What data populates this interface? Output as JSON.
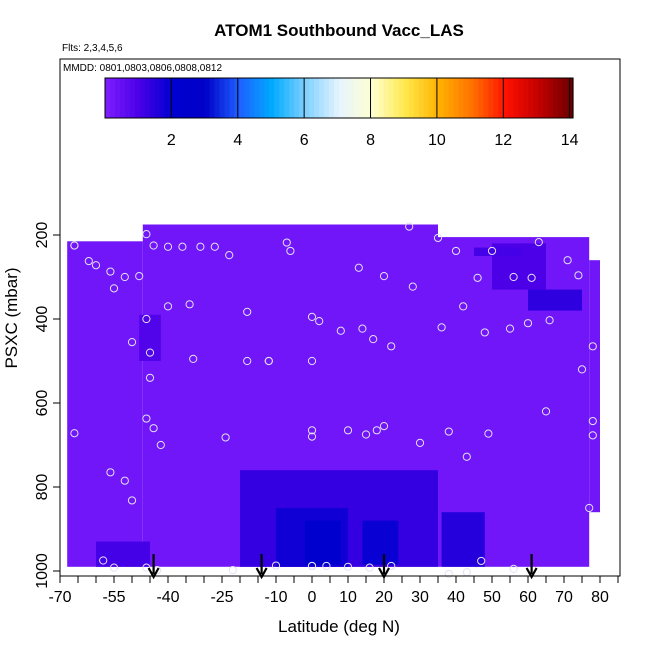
{
  "chart_data": {
    "type": "heatmap",
    "title": "ATOM1 Southbound Vacc_LAS",
    "annotations": [
      "Flts: 2,3,4,5,6",
      "MMDD: 0801,0803,0806,0808,0812"
    ],
    "xlabel": "Latitude (deg N)",
    "ylabel": "PSXC (mbar)",
    "xlim": [
      -70,
      85
    ],
    "ylim": [
      1000,
      100
    ],
    "x_ticks_labeled": [
      -70,
      -55,
      -40,
      -25,
      -10,
      0,
      10,
      20,
      30,
      40,
      50,
      60,
      70,
      80
    ],
    "x_ticks_minor": [
      -65,
      -60,
      -50,
      -45,
      -35,
      -30,
      -20,
      -15,
      -5,
      5,
      15,
      25,
      35,
      45,
      55,
      65,
      75,
      85
    ],
    "y_ticks": [
      200,
      400,
      600,
      800,
      1000
    ],
    "colorbar": {
      "range": [
        0,
        14.1
      ],
      "ticks": [
        2,
        4,
        6,
        8,
        10,
        12,
        14
      ],
      "colors": [
        "#7f1fff",
        "#4b00e8",
        "#0000d0",
        "#0000c8",
        "#1f5fff",
        "#00aaff",
        "#7fd0ff",
        "#e6f4ff",
        "#ffffd0",
        "#ffe84a",
        "#ffb000",
        "#ff7000",
        "#ff1000",
        "#c00000",
        "#6a0000"
      ]
    },
    "background_value": 0.3,
    "coverage": [
      {
        "lat": [
          -68,
          -47
        ],
        "p": [
          215,
          990
        ]
      },
      {
        "lat": [
          -47,
          35
        ],
        "p": [
          175,
          990
        ]
      },
      {
        "lat": [
          35,
          77
        ],
        "p": [
          205,
          990
        ]
      },
      {
        "lat": [
          77,
          80
        ],
        "p": [
          260,
          860
        ]
      },
      {
        "lat": [
          55,
          72
        ],
        "p": [
          870,
          935
        ]
      },
      {
        "lat": [
          53,
          57
        ],
        "p": [
          935,
          970
        ]
      }
    ],
    "enhanced_regions": [
      {
        "lat": [
          -20,
          35
        ],
        "p": [
          760,
          990
        ],
        "value": 1.3
      },
      {
        "lat": [
          -10,
          10
        ],
        "p": [
          850,
          990
        ],
        "value": 1.8
      },
      {
        "lat": [
          -2,
          8
        ],
        "p": [
          880,
          985
        ],
        "value": 2.3
      },
      {
        "lat": [
          14,
          24
        ],
        "p": [
          880,
          985
        ],
        "value": 1.9
      },
      {
        "lat": [
          36,
          48
        ],
        "p": [
          860,
          990
        ],
        "value": 1.5
      },
      {
        "lat": [
          -60,
          -45
        ],
        "p": [
          930,
          990
        ],
        "value": 1.1
      },
      {
        "lat": [
          50,
          65
        ],
        "p": [
          220,
          330
        ],
        "value": 1.0
      },
      {
        "lat": [
          60,
          75
        ],
        "p": [
          330,
          380
        ],
        "value": 1.4
      },
      {
        "lat": [
          45,
          58
        ],
        "p": [
          230,
          250
        ],
        "value": 1.1
      },
      {
        "lat": [
          -48,
          -42
        ],
        "p": [
          390,
          500
        ],
        "value": 0.9
      }
    ],
    "sample_points": [
      [
        -66,
        225
      ],
      [
        -66,
        225
      ],
      [
        -62,
        262
      ],
      [
        -60,
        272
      ],
      [
        -56,
        287
      ],
      [
        -55,
        327
      ],
      [
        -52,
        300
      ],
      [
        -48,
        298
      ],
      [
        -46,
        198
      ],
      [
        -44,
        225
      ],
      [
        -40,
        370
      ],
      [
        -40,
        228
      ],
      [
        -36,
        228
      ],
      [
        -34,
        365
      ],
      [
        -31,
        228
      ],
      [
        -27,
        228
      ],
      [
        -23,
        248
      ],
      [
        -18,
        383
      ],
      [
        -12,
        500
      ],
      [
        -7,
        218
      ],
      [
        -6,
        238
      ],
      [
        -66,
        672
      ],
      [
        -56,
        765
      ],
      [
        -52,
        785
      ],
      [
        -50,
        832
      ],
      [
        -46,
        637
      ],
      [
        -44,
        660
      ],
      [
        -42,
        700
      ],
      [
        -46,
        400
      ],
      [
        -45,
        480
      ],
      [
        -45,
        540
      ],
      [
        -50,
        455
      ],
      [
        -33,
        495
      ],
      [
        -24,
        682
      ],
      [
        -18,
        500
      ],
      [
        -12,
        500
      ],
      [
        0,
        395
      ],
      [
        2,
        405
      ],
      [
        0,
        500
      ],
      [
        0,
        665
      ],
      [
        0,
        680
      ],
      [
        8,
        428
      ],
      [
        10,
        665
      ],
      [
        13,
        278
      ],
      [
        14,
        423
      ],
      [
        15,
        675
      ],
      [
        17,
        448
      ],
      [
        18,
        665
      ],
      [
        20,
        298
      ],
      [
        20,
        655
      ],
      [
        22,
        465
      ],
      [
        27,
        180
      ],
      [
        28,
        323
      ],
      [
        30,
        695
      ],
      [
        35,
        207
      ],
      [
        36,
        420
      ],
      [
        38,
        668
      ],
      [
        40,
        238
      ],
      [
        42,
        370
      ],
      [
        43,
        728
      ],
      [
        46,
        302
      ],
      [
        48,
        432
      ],
      [
        49,
        673
      ],
      [
        50,
        238
      ],
      [
        55,
        423
      ],
      [
        56,
        300
      ],
      [
        60,
        410
      ],
      [
        61,
        302
      ],
      [
        63,
        217
      ],
      [
        65,
        620
      ],
      [
        66,
        403
      ],
      [
        71,
        260
      ],
      [
        74,
        296
      ],
      [
        75,
        520
      ],
      [
        77,
        850
      ],
      [
        78,
        465
      ],
      [
        78,
        643
      ],
      [
        78,
        677
      ],
      [
        -58,
        975
      ],
      [
        -55,
        992
      ],
      [
        -46,
        992
      ],
      [
        -43,
        998
      ],
      [
        -22,
        998
      ],
      [
        -10,
        987
      ],
      [
        0,
        988
      ],
      [
        0,
        988
      ],
      [
        4,
        988
      ],
      [
        10,
        990
      ],
      [
        16,
        992
      ],
      [
        22,
        988
      ],
      [
        38,
        1007
      ],
      [
        43,
        1003
      ],
      [
        47,
        976
      ],
      [
        56,
        995
      ]
    ],
    "flight_markers_lat": [
      -44,
      -14,
      20,
      61
    ]
  }
}
